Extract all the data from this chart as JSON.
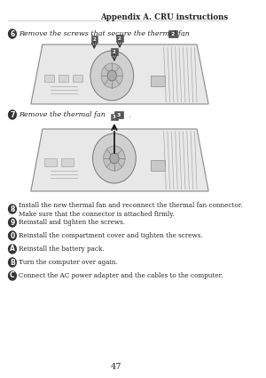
{
  "page_bg": "#f0f0f0",
  "content_bg": "#ffffff",
  "header_text": "Appendix A. CRU instructions",
  "step6_bullet": "6",
  "step6_text": "Remove the screws that secure the thermal fan",
  "step7_bullet": "7",
  "step7_text": "Remove the thermal fan",
  "bottom_bullets": [
    {
      "num": "8",
      "text": "Install the new thermal fan and reconnect the thermal fan connector.\nMake sure that the connector is attached firmly."
    },
    {
      "num": "9",
      "text": "Reinstall and tighten the screws."
    },
    {
      "num": "0",
      "text": "Reinstall the compartment cover and tighten the screws."
    },
    {
      "num": "A",
      "text": "Reinstall the battery pack."
    },
    {
      "num": "B",
      "text": "Turn the computer over again."
    },
    {
      "num": "C",
      "text": "Connect the AC power adapter and the cables to the computer."
    }
  ],
  "page_num": "47",
  "text_color": "#222222",
  "bullet_bg": "#555555",
  "screw_arrows": [
    [
      122,
      373
    ],
    [
      155,
      374
    ],
    [
      148,
      359
    ]
  ],
  "screw_labels": [
    [
      122,
      381,
      "2"
    ],
    [
      155,
      382,
      "2"
    ],
    [
      148,
      367,
      "2"
    ]
  ]
}
